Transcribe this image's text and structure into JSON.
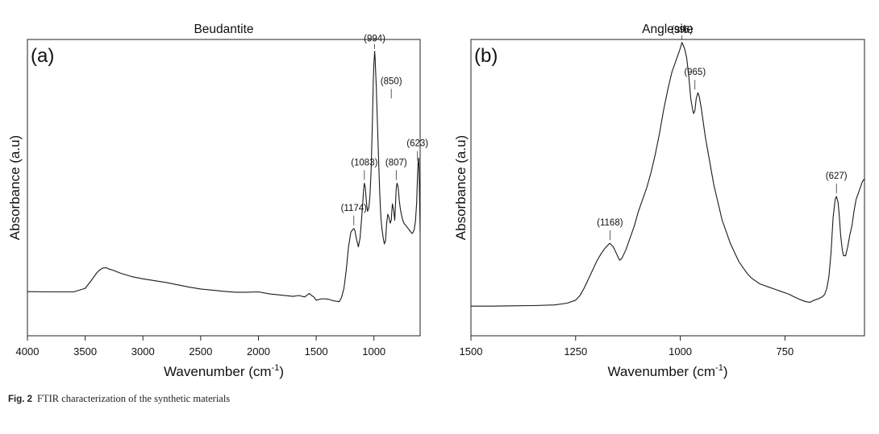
{
  "figure": {
    "caption_label": "Fig. 2",
    "caption_text": "FTIR characterization of the synthetic materials"
  },
  "chart_data": [
    {
      "type": "line",
      "panel_label": "(a)",
      "title": "Beudantite",
      "xlabel": "Wavenumber (cm-1)",
      "ylabel": "Absorbance (a.u)",
      "xlim": [
        4000,
        600
      ],
      "x_reversed": true,
      "x_ticks": [
        4000,
        3500,
        3000,
        2500,
        2000,
        1500,
        1000
      ],
      "tick_labels": [
        "4000",
        "3500",
        "3000",
        "2500",
        "2000",
        "1500",
        "1000"
      ],
      "y_ticks_shown": false,
      "ylim": [
        0,
        1
      ],
      "series": [
        {
          "x": [
            4000,
            3800,
            3600,
            3500,
            3450,
            3400,
            3380,
            3350,
            3320,
            3300,
            3250,
            3200,
            3100,
            3000,
            2900,
            2800,
            2700,
            2600,
            2500,
            2400,
            2300,
            2200,
            2100,
            2000,
            1900,
            1800,
            1700,
            1650,
            1600,
            1560,
            1540,
            1520,
            1500,
            1450,
            1400,
            1350,
            1300,
            1280,
            1260,
            1240,
            1220,
            1200,
            1190,
            1180,
            1174,
            1165,
            1150,
            1135,
            1120,
            1100,
            1090,
            1083,
            1075,
            1065,
            1055,
            1045,
            1035,
            1025,
            1015,
            1005,
            1000,
            994,
            990,
            980,
            970,
            960,
            950,
            940,
            930,
            920,
            910,
            900,
            890,
            880,
            870,
            860,
            850,
            845,
            840,
            830,
            820,
            815,
            807,
            800,
            790,
            780,
            770,
            760,
            750,
            740,
            730,
            720,
            710,
            700,
            690,
            680,
            670,
            660,
            650,
            640,
            630,
            623,
            618,
            612,
            606,
            600
          ],
          "y": [
            0.149,
            0.148,
            0.148,
            0.16,
            0.185,
            0.212,
            0.22,
            0.228,
            0.23,
            0.226,
            0.22,
            0.212,
            0.2,
            0.192,
            0.186,
            0.18,
            0.172,
            0.164,
            0.158,
            0.154,
            0.15,
            0.147,
            0.147,
            0.148,
            0.141,
            0.137,
            0.133,
            0.136,
            0.131,
            0.143,
            0.136,
            0.131,
            0.12,
            0.125,
            0.124,
            0.118,
            0.115,
            0.13,
            0.16,
            0.22,
            0.3,
            0.35,
            0.355,
            0.36,
            0.362,
            0.355,
            0.325,
            0.3,
            0.33,
            0.43,
            0.49,
            0.515,
            0.5,
            0.45,
            0.42,
            0.43,
            0.47,
            0.55,
            0.7,
            0.87,
            0.92,
            0.96,
            0.94,
            0.84,
            0.72,
            0.6,
            0.48,
            0.4,
            0.36,
            0.33,
            0.31,
            0.32,
            0.38,
            0.41,
            0.4,
            0.38,
            0.39,
            0.42,
            0.445,
            0.425,
            0.39,
            0.43,
            0.5,
            0.515,
            0.5,
            0.455,
            0.425,
            0.405,
            0.39,
            0.38,
            0.375,
            0.37,
            0.365,
            0.36,
            0.355,
            0.35,
            0.345,
            0.35,
            0.36,
            0.39,
            0.45,
            0.54,
            0.58,
            0.6,
            0.5,
            0.35
          ]
        }
      ],
      "annotations": [
        {
          "label": "(994)",
          "x": 994,
          "y": 0.96
        },
        {
          "label": "(850)",
          "x": 850,
          "y": 0.79
        },
        {
          "label": "(623)",
          "x": 623,
          "y": 0.58
        },
        {
          "label": "(1083)",
          "x": 1083,
          "y": 0.515
        },
        {
          "label": "(807)",
          "x": 807,
          "y": 0.515
        },
        {
          "label": "(1174)",
          "x": 1174,
          "y": 0.362
        }
      ]
    },
    {
      "type": "line",
      "panel_label": "(b)",
      "title": "Anglesite",
      "xlabel": "Wavenumber (cm-1)",
      "ylabel": "Absorbance (a.u)",
      "xlim": [
        1500,
        560
      ],
      "x_reversed": true,
      "x_ticks": [
        1500,
        1250,
        1000,
        750
      ],
      "tick_labels": [
        "1500",
        "1250",
        "1000",
        "750"
      ],
      "y_ticks_shown": false,
      "ylim": [
        0,
        1
      ],
      "series": [
        {
          "x": [
            1500,
            1450,
            1400,
            1350,
            1300,
            1270,
            1250,
            1240,
            1230,
            1220,
            1210,
            1200,
            1190,
            1180,
            1170,
            1168,
            1160,
            1150,
            1145,
            1140,
            1130,
            1120,
            1110,
            1100,
            1090,
            1080,
            1070,
            1060,
            1050,
            1040,
            1030,
            1020,
            1010,
            1005,
            1000,
            996,
            990,
            985,
            980,
            975,
            970,
            968,
            965,
            962,
            958,
            955,
            950,
            945,
            940,
            930,
            920,
            910,
            900,
            890,
            880,
            870,
            860,
            850,
            840,
            830,
            820,
            810,
            800,
            790,
            780,
            770,
            760,
            750,
            740,
            730,
            720,
            710,
            700,
            690,
            680,
            670,
            660,
            655,
            650,
            645,
            640,
            635,
            630,
            627,
            623,
            620,
            617,
            613,
            610,
            605,
            600,
            595,
            590,
            585,
            580,
            575,
            570,
            565,
            560
          ],
          "y": [
            0.1,
            0.1,
            0.101,
            0.102,
            0.104,
            0.11,
            0.12,
            0.135,
            0.16,
            0.19,
            0.22,
            0.25,
            0.275,
            0.295,
            0.31,
            0.312,
            0.3,
            0.27,
            0.255,
            0.26,
            0.29,
            0.33,
            0.37,
            0.42,
            0.46,
            0.5,
            0.55,
            0.61,
            0.68,
            0.76,
            0.83,
            0.89,
            0.93,
            0.95,
            0.97,
            0.99,
            0.97,
            0.94,
            0.88,
            0.8,
            0.76,
            0.75,
            0.76,
            0.8,
            0.82,
            0.81,
            0.77,
            0.72,
            0.67,
            0.59,
            0.51,
            0.45,
            0.39,
            0.35,
            0.31,
            0.28,
            0.25,
            0.23,
            0.21,
            0.195,
            0.185,
            0.175,
            0.17,
            0.165,
            0.16,
            0.155,
            0.15,
            0.145,
            0.14,
            0.133,
            0.126,
            0.12,
            0.115,
            0.113,
            0.12,
            0.125,
            0.132,
            0.14,
            0.16,
            0.2,
            0.28,
            0.4,
            0.46,
            0.47,
            0.45,
            0.4,
            0.34,
            0.29,
            0.27,
            0.27,
            0.3,
            0.34,
            0.37,
            0.42,
            0.46,
            0.48,
            0.5,
            0.52,
            0.53
          ]
        }
      ],
      "annotations": [
        {
          "label": "(996)",
          "x": 996,
          "y": 0.99
        },
        {
          "label": "(965)",
          "x": 965,
          "y": 0.82
        },
        {
          "label": "(627)",
          "x": 627,
          "y": 0.47
        },
        {
          "label": "(1168)",
          "x": 1168,
          "y": 0.312
        }
      ]
    }
  ]
}
